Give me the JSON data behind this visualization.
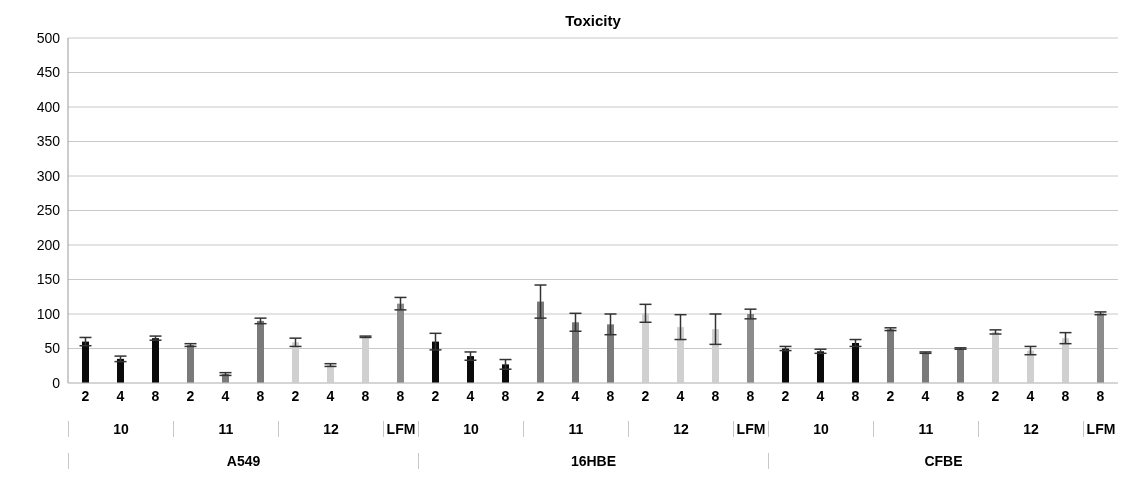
{
  "chart_data": {
    "type": "bar",
    "title": "Toxicity",
    "categories": [
      "2",
      "4",
      "8",
      "2",
      "4",
      "8",
      "2",
      "4",
      "8",
      "8",
      "2",
      "4",
      "8",
      "2",
      "4",
      "8",
      "2",
      "4",
      "8",
      "8",
      "2",
      "4",
      "8",
      "2",
      "4",
      "8",
      "2",
      "4",
      "8",
      "8"
    ],
    "values": [
      60,
      35,
      65,
      55,
      13,
      90,
      59,
      26,
      67,
      115,
      60,
      39,
      27,
      118,
      88,
      85,
      101,
      81,
      78,
      100,
      50,
      46,
      58,
      78,
      44,
      50,
      74,
      47,
      65,
      101
    ],
    "errors": [
      6,
      4,
      3,
      2,
      2,
      4,
      6,
      2,
      1,
      9,
      12,
      6,
      7,
      24,
      13,
      15,
      13,
      18,
      22,
      7,
      3,
      3,
      5,
      2,
      1,
      1,
      3,
      6,
      8,
      2
    ],
    "colors": [
      "#0a0a0a",
      "#0a0a0a",
      "#0a0a0a",
      "#7a7a7a",
      "#7a7a7a",
      "#7a7a7a",
      "#d0d0d0",
      "#d0d0d0",
      "#d0d0d0",
      "#8c8c8c",
      "#0a0a0a",
      "#0a0a0a",
      "#0a0a0a",
      "#7a7a7a",
      "#7a7a7a",
      "#7a7a7a",
      "#d0d0d0",
      "#d0d0d0",
      "#d0d0d0",
      "#8c8c8c",
      "#0a0a0a",
      "#0a0a0a",
      "#0a0a0a",
      "#7a7a7a",
      "#7a7a7a",
      "#7a7a7a",
      "#d0d0d0",
      "#d0d0d0",
      "#d0d0d0",
      "#8c8c8c"
    ],
    "annotations": [
      "10",
      "11",
      "12",
      "LFM",
      "10",
      "11",
      "12",
      "LFM",
      "10",
      "11",
      "12",
      "LFM",
      "A549",
      "16HBE",
      "CFBE"
    ],
    "ylim": [
      0,
      500
    ],
    "yticks": [
      0,
      50,
      100,
      150,
      200,
      250,
      300,
      350,
      400,
      450,
      500
    ],
    "grid": "y",
    "legend": false
  }
}
